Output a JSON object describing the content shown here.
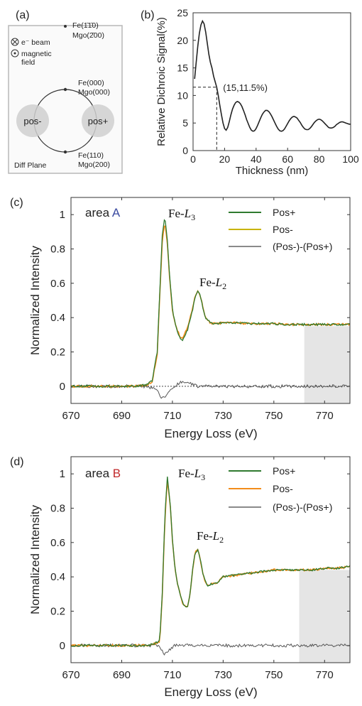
{
  "chart_data": [
    {
      "panel": "(a)",
      "type": "diagram",
      "labels": {
        "spot_top": "Fe(1̄1̄0)\nMgo(2̄00)",
        "beam": "e⁻ beam",
        "field": "magnetic\nfield",
        "spot_mid": "Fe(000)\nMgo(000)",
        "spot_bot": "Fe(110)\nMgo(200)",
        "pos_minus": "pos-",
        "pos_plus": "pos+",
        "plane": "Diff Plane"
      }
    },
    {
      "panel": "(b)",
      "type": "line",
      "xlabel": "Thickness (nm)",
      "ylabel": "Relative Dichroic Signal(%)",
      "xlim": [
        0,
        100
      ],
      "ylim": [
        0,
        25
      ],
      "xticks": [
        0,
        20,
        40,
        60,
        80,
        100
      ],
      "yticks": [
        0,
        5,
        10,
        15,
        20,
        25
      ],
      "annotation": "(15,11.5%)",
      "marked_point": [
        15,
        11.5
      ],
      "series": [
        {
          "x": [
            1,
            2,
            3,
            4,
            5,
            6,
            7,
            8,
            9,
            10,
            11,
            12,
            13,
            14,
            15,
            16,
            17,
            18,
            19,
            20,
            21,
            22,
            23,
            24,
            25,
            26,
            27,
            28,
            29,
            30,
            31,
            32,
            33,
            34,
            35,
            36,
            37,
            38,
            39,
            40,
            41,
            42,
            43,
            44,
            45,
            46,
            47,
            48,
            49,
            50,
            51,
            52,
            53,
            54,
            55,
            56,
            57,
            58,
            59,
            60,
            61,
            62,
            63,
            64,
            65,
            66,
            67,
            68,
            69,
            70,
            71,
            72,
            73,
            74,
            75,
            76,
            77,
            78,
            79,
            80,
            81,
            82,
            83,
            84,
            85,
            86,
            87,
            88,
            89,
            90,
            91,
            92,
            93,
            94,
            95,
            96,
            97,
            98,
            99,
            100
          ],
          "values": [
            13.0,
            16.0,
            19.0,
            21.3,
            22.8,
            23.5,
            23.0,
            21.5,
            19.5,
            17.5,
            16.0,
            15.0,
            13.5,
            12.5,
            11.5,
            10.0,
            8.2,
            6.5,
            5.0,
            4.0,
            3.7,
            4.2,
            5.3,
            6.5,
            7.5,
            8.2,
            8.7,
            8.9,
            8.8,
            8.5,
            8.0,
            7.3,
            6.5,
            5.6,
            4.9,
            4.2,
            3.7,
            3.5,
            3.6,
            4.0,
            4.6,
            5.3,
            6.0,
            6.6,
            7.0,
            7.3,
            7.3,
            7.1,
            6.7,
            6.2,
            5.6,
            5.0,
            4.4,
            3.9,
            3.6,
            3.5,
            3.6,
            3.9,
            4.4,
            4.9,
            5.4,
            5.8,
            6.1,
            6.2,
            6.1,
            5.9,
            5.5,
            5.1,
            4.6,
            4.2,
            3.9,
            3.8,
            3.8,
            4.0,
            4.3,
            4.7,
            5.1,
            5.4,
            5.6,
            5.7,
            5.6,
            5.4,
            5.1,
            4.8,
            4.5,
            4.2,
            4.1,
            4.1,
            4.2,
            4.4,
            4.7,
            4.9,
            5.1,
            5.2,
            5.2,
            5.1,
            5.0,
            4.9,
            4.8,
            4.8
          ]
        }
      ]
    },
    {
      "panel": "(c)",
      "type": "line",
      "area_prefix": "area ",
      "area_letter": "A",
      "area_color": "#3a4aa0",
      "xlabel": "Energy Loss (eV)",
      "ylabel": "Normalized Intensity",
      "xlim": [
        670,
        780
      ],
      "ylim": [
        -0.1,
        1.1
      ],
      "xticks": [
        670,
        690,
        710,
        730,
        750,
        770
      ],
      "yticks": [
        0,
        0.2,
        0.4,
        0.6,
        0.8,
        1
      ],
      "ytick_labels": [
        "0",
        "0.2",
        "0.4",
        "0.6",
        "0.8",
        "1"
      ],
      "peak1": "Fe-L3",
      "peak2": "Fe-L2",
      "shaded_range": [
        762,
        780,
        -0.1,
        0.35
      ],
      "legend": [
        "Pos+",
        "Pos-",
        "(Pos-)-(Pos+)"
      ],
      "colors": {
        "Pos+": "#2f7a2f",
        "Pos-": "#f28c1a",
        "diff": "#555555"
      },
      "x": [
        670,
        675,
        680,
        685,
        690,
        695,
        700,
        702,
        704,
        705,
        706,
        707,
        708,
        709,
        710,
        711,
        712,
        713,
        714,
        716,
        718,
        719,
        720,
        721,
        722,
        723,
        725,
        727,
        730,
        735,
        740,
        745,
        750,
        755,
        760,
        765,
        770,
        775,
        780
      ],
      "spectrum": [
        0.0,
        0.0,
        0.0,
        0.0,
        0.0,
        0.0,
        0.01,
        0.03,
        0.2,
        0.55,
        0.88,
        0.99,
        0.85,
        0.62,
        0.45,
        0.37,
        0.32,
        0.28,
        0.27,
        0.33,
        0.45,
        0.52,
        0.56,
        0.53,
        0.46,
        0.4,
        0.37,
        0.365,
        0.37,
        0.37,
        0.365,
        0.365,
        0.365,
        0.36,
        0.36,
        0.36,
        0.36,
        0.36,
        0.36
      ],
      "difference": [
        0.0,
        0.0,
        0.0,
        0.0,
        0.0,
        0.0,
        0.0,
        -0.01,
        -0.03,
        -0.05,
        -0.07,
        -0.06,
        -0.04,
        -0.03,
        -0.01,
        0.0,
        0.01,
        0.02,
        0.03,
        0.02,
        0.01,
        0.01,
        0.0,
        0.0,
        0.0,
        0.0,
        0.0,
        0.0,
        0.0,
        0.0,
        0.0,
        0.0,
        0.0,
        0.0,
        0.0,
        0.0,
        0.0,
        0.0,
        0.0
      ]
    },
    {
      "panel": "(d)",
      "type": "line",
      "area_prefix": "area ",
      "area_letter": "B",
      "area_color": "#c0282a",
      "xlabel": "Energy Loss (eV)",
      "ylabel": "Normalized Intensity",
      "xlim": [
        670,
        780
      ],
      "ylim": [
        -0.1,
        1.1
      ],
      "xticks": [
        670,
        690,
        710,
        730,
        750,
        770
      ],
      "yticks": [
        0,
        0.2,
        0.4,
        0.6,
        0.8,
        1
      ],
      "ytick_labels": [
        "0",
        "0.2",
        "0.4",
        "0.6",
        "0.8",
        "1"
      ],
      "peak1": "Fe-L3",
      "peak2": "Fe-L2",
      "shaded_range": [
        760,
        780,
        -0.1,
        0.44
      ],
      "legend": [
        "Pos+",
        "Pos-",
        "(Pos-)-(Pos+)"
      ],
      "colors": {
        "Pos+": "#2f7a2f",
        "Pos-": "#f28c1a",
        "diff": "#555555"
      },
      "x": [
        670,
        675,
        680,
        685,
        690,
        695,
        700,
        703,
        705,
        706,
        707,
        708,
        709,
        710,
        711,
        712,
        713,
        714,
        715,
        716,
        717,
        718,
        719,
        720,
        721,
        722,
        723,
        724,
        726,
        728,
        730,
        735,
        740,
        745,
        750,
        755,
        760,
        765,
        770,
        775,
        780
      ],
      "spectrum": [
        0.0,
        0.0,
        0.0,
        0.0,
        0.0,
        0.0,
        0.0,
        0.01,
        0.03,
        0.3,
        0.75,
        0.98,
        0.85,
        0.62,
        0.45,
        0.36,
        0.3,
        0.25,
        0.23,
        0.23,
        0.3,
        0.45,
        0.54,
        0.56,
        0.5,
        0.42,
        0.37,
        0.35,
        0.36,
        0.37,
        0.4,
        0.41,
        0.42,
        0.43,
        0.44,
        0.44,
        0.44,
        0.44,
        0.45,
        0.45,
        0.46
      ],
      "difference": [
        0.0,
        0.0,
        0.0,
        0.0,
        0.0,
        0.0,
        0.0,
        0.0,
        -0.01,
        -0.03,
        -0.05,
        -0.04,
        -0.02,
        -0.01,
        0.0,
        0.0,
        0.0,
        0.0,
        0.0,
        0.0,
        0.0,
        0.0,
        0.0,
        0.0,
        0.0,
        0.0,
        0.0,
        0.0,
        0.0,
        0.0,
        0.0,
        0.0,
        0.0,
        0.0,
        0.0,
        0.0,
        0.0,
        0.0,
        0.0,
        0.0,
        0.0
      ]
    }
  ]
}
